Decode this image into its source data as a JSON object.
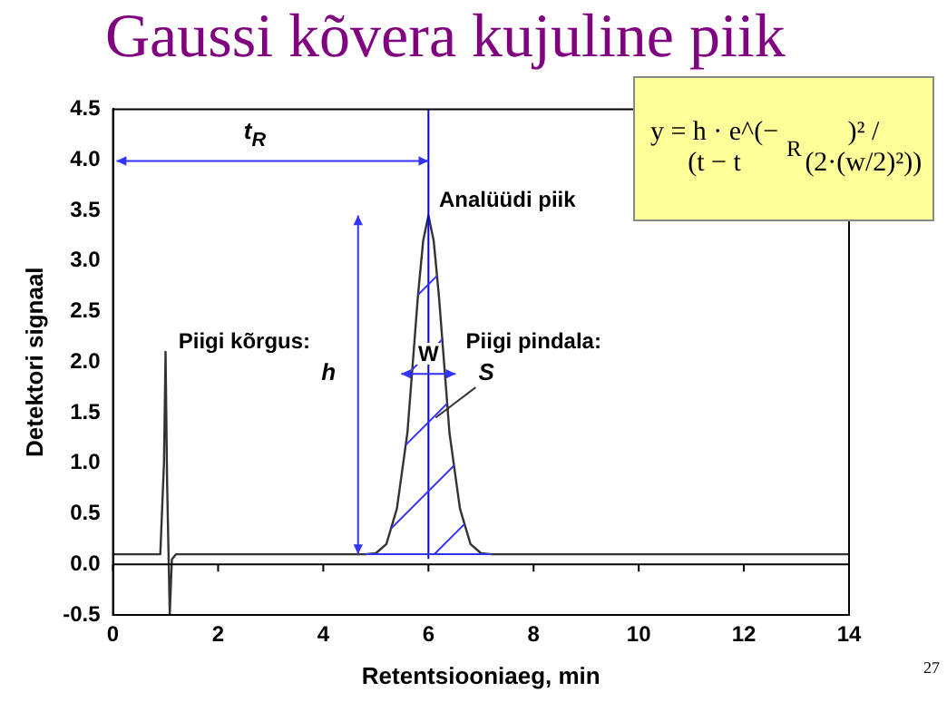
{
  "chart_data": {
    "type": "line",
    "title": "Gaussi kõvera kujuline piik",
    "xlabel": "Retentsiooniaeg, min",
    "ylabel": "Detektori signaal",
    "x": [
      0,
      0.5,
      0.9,
      0.97,
      1.0,
      1.03,
      1.08,
      1.12,
      1.2,
      2,
      3,
      4,
      4.8,
      5.0,
      5.2,
      5.4,
      5.6,
      5.8,
      5.9,
      6.0,
      6.1,
      6.2,
      6.4,
      6.6,
      6.8,
      7.0,
      7.2,
      8,
      10,
      12,
      14
    ],
    "series": [
      {
        "color": "#333333",
        "values": [
          0.1,
          0.1,
          0.1,
          1.0,
          2.1,
          0.8,
          -0.5,
          0.05,
          0.1,
          0.1,
          0.1,
          0.1,
          0.1,
          0.11,
          0.2,
          0.55,
          1.3,
          2.65,
          3.2,
          3.45,
          3.2,
          2.65,
          1.3,
          0.55,
          0.2,
          0.11,
          0.1,
          0.1,
          0.1,
          0.1,
          0.1
        ]
      }
    ],
    "xlim": [
      0,
      14
    ],
    "xticks": [
      0,
      2,
      4,
      6,
      8,
      10,
      12,
      14
    ],
    "ylim": [
      -0.5,
      4.5
    ],
    "yticks": [
      -0.5,
      {
        "value": 0,
        "label": "0.0"
      },
      0.5,
      {
        "value": 1,
        "label": "1.0"
      },
      1.5,
      {
        "value": 2,
        "label": "2.0"
      },
      2.5,
      {
        "value": 3,
        "label": "3.0"
      },
      3.5,
      {
        "value": 4,
        "label": "4.0"
      },
      4.5
    ],
    "ref_lines": [
      {
        "axis": "x",
        "value": 6,
        "color": "#0000ff"
      }
    ],
    "annotations": [
      "t$_{R}$",
      "Analüüdi piik",
      "Piigi kõrgus:",
      "h",
      "W",
      "Piigi pindala:",
      "S",
      "y = h · e^(−(t − t$_{R}$)² / (2·(w/2)²))",
      "27"
    ],
    "grid": false,
    "legend": false,
    "marker": "none",
    "line_style": "solid"
  }
}
